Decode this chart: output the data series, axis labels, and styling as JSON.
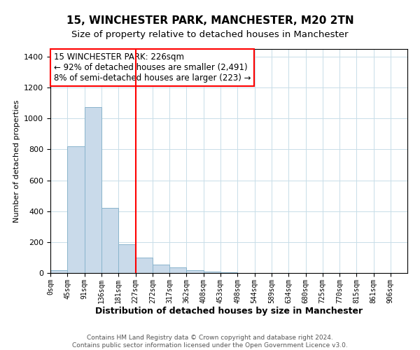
{
  "title": "15, WINCHESTER PARK, MANCHESTER, M20 2TN",
  "subtitle": "Size of property relative to detached houses in Manchester",
  "xlabel": "Distribution of detached houses by size in Manchester",
  "ylabel": "Number of detached properties",
  "annotation_title": "15 WINCHESTER PARK: 226sqm",
  "annotation_line1": "← 92% of detached houses are smaller (2,491)",
  "annotation_line2": "8% of semi-detached houses are larger (223) →",
  "footer1": "Contains HM Land Registry data © Crown copyright and database right 2024.",
  "footer2": "Contains public sector information licensed under the Open Government Licence v3.0.",
  "bar_color": "#c9daea",
  "bar_edge_color": "#8ab4cc",
  "vline_color": "red",
  "vline_x": 227,
  "bin_edges": [
    0,
    45,
    91,
    136,
    181,
    227,
    272,
    317,
    362,
    408,
    453,
    498,
    544,
    589,
    634,
    680,
    725,
    770,
    815,
    861,
    906
  ],
  "bar_heights": [
    20,
    820,
    1075,
    420,
    185,
    100,
    55,
    35,
    20,
    10,
    5,
    2,
    1,
    0,
    0,
    0,
    0,
    0,
    0,
    0
  ],
  "ylim": [
    0,
    1450
  ],
  "xlim_left": 0,
  "xlim_right": 951,
  "tick_labels": [
    "0sqm",
    "45sqm",
    "91sqm",
    "136sqm",
    "181sqm",
    "227sqm",
    "272sqm",
    "317sqm",
    "362sqm",
    "408sqm",
    "453sqm",
    "498sqm",
    "544sqm",
    "589sqm",
    "634sqm",
    "680sqm",
    "725sqm",
    "770sqm",
    "815sqm",
    "861sqm",
    "906sqm"
  ],
  "tick_positions": [
    0,
    45,
    91,
    136,
    181,
    227,
    272,
    317,
    362,
    408,
    453,
    498,
    544,
    589,
    634,
    680,
    725,
    770,
    815,
    861,
    906
  ],
  "annotation_box_color": "white",
  "annotation_box_edge": "red",
  "title_fontsize": 11,
  "subtitle_fontsize": 9.5,
  "ylabel_fontsize": 8,
  "xlabel_fontsize": 9,
  "tick_fontsize": 7,
  "annotation_fontsize": 8.5,
  "footer_fontsize": 6.5,
  "grid_color": "#d0e4f0"
}
